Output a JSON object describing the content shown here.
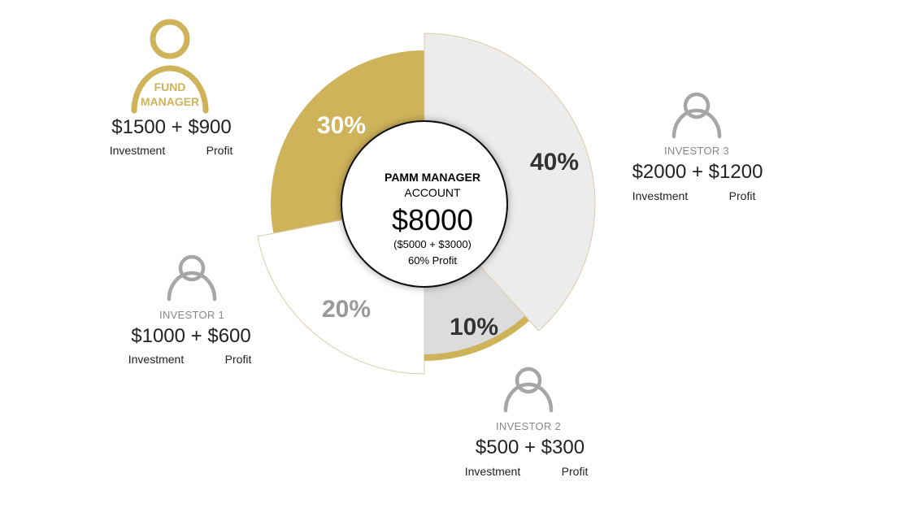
{
  "center": {
    "title": "PAMM MANAGER",
    "subtitle": "ACCOUNT",
    "total": "$8000",
    "breakdown": "($5000 + $3000)",
    "profit_note": "60% Profit"
  },
  "segments": [
    {
      "id": "investor3",
      "label": "40%",
      "value": 40,
      "color": "#ececec",
      "text_color": "#333333"
    },
    {
      "id": "investor2",
      "label": "10%",
      "value": 10,
      "color": "#dcdcdc",
      "text_color": "#333333"
    },
    {
      "id": "investor1",
      "label": "20%",
      "value": 20,
      "color": "#ffffff",
      "text_color": "#999999"
    },
    {
      "id": "fund_manager",
      "label": "30%",
      "value": 30,
      "color": "#cfb35a",
      "text_color": "#ffffff"
    }
  ],
  "colors": {
    "gold": "#cfb35a",
    "gray_icon": "#a6a6a6",
    "outline": "#d8ccb0"
  },
  "participants": {
    "fund_manager": {
      "role_line1": "FUND",
      "role_line2": "MANAGER",
      "amount": "$1500 + $900",
      "investment_label": "Investment",
      "profit_label": "Profit",
      "icon": "user-icon"
    },
    "investor1": {
      "role": "INVESTOR 1",
      "amount": "$1000 + $600",
      "investment_label": "Investment",
      "profit_label": "Profit",
      "icon": "user-icon"
    },
    "investor2": {
      "role": "INVESTOR 2",
      "amount": "$500 + $300",
      "investment_label": "Investment",
      "profit_label": "Profit",
      "icon": "user-icon"
    },
    "investor3": {
      "role": "INVESTOR 3",
      "amount": "$2000 + $1200",
      "investment_label": "Investment",
      "profit_label": "Profit",
      "icon": "user-icon"
    }
  }
}
